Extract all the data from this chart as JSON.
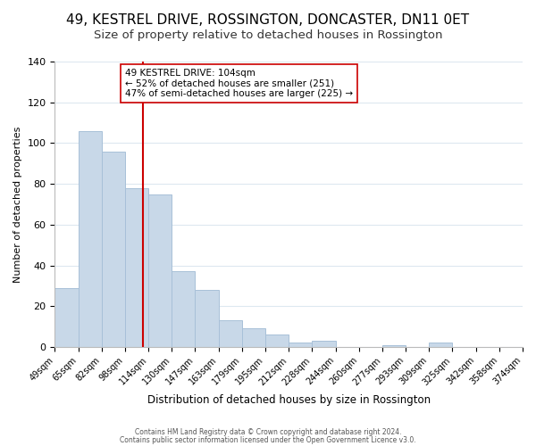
{
  "title": "49, KESTREL DRIVE, ROSSINGTON, DONCASTER, DN11 0ET",
  "subtitle": "Size of property relative to detached houses in Rossington",
  "xlabel": "Distribution of detached houses by size in Rossington",
  "ylabel": "Number of detached properties",
  "bar_values": [
    29,
    106,
    96,
    78,
    75,
    37,
    28,
    13,
    9,
    6,
    2,
    3,
    0,
    0,
    1,
    0,
    2,
    0,
    0,
    0
  ],
  "bar_labels": [
    "49sqm",
    "65sqm",
    "82sqm",
    "98sqm",
    "114sqm",
    "130sqm",
    "147sqm",
    "163sqm",
    "179sqm",
    "195sqm",
    "212sqm",
    "228sqm",
    "244sqm",
    "260sqm",
    "277sqm",
    "293sqm",
    "309sqm",
    "325sqm",
    "342sqm",
    "358sqm",
    "374sqm"
  ],
  "bar_color": "#c8d8e8",
  "bar_edge_color": "#a8c0d8",
  "vline_x": 3.75,
  "vline_color": "#cc0000",
  "annotation_line1": "49 KESTREL DRIVE: 104sqm",
  "annotation_line2": "← 52% of detached houses are smaller (251)",
  "annotation_line3": "47% of semi-detached houses are larger (225) →",
  "annotation_box_color": "#ffffff",
  "annotation_box_edge": "#cc0000",
  "ylim": [
    0,
    140
  ],
  "yticks": [
    0,
    20,
    40,
    60,
    80,
    100,
    120,
    140
  ],
  "footer1": "Contains HM Land Registry data © Crown copyright and database right 2024.",
  "footer2": "Contains public sector information licensed under the Open Government Licence v3.0.",
  "background_color": "#ffffff",
  "grid_color": "#dde8f0",
  "title_fontsize": 11,
  "subtitle_fontsize": 9.5
}
